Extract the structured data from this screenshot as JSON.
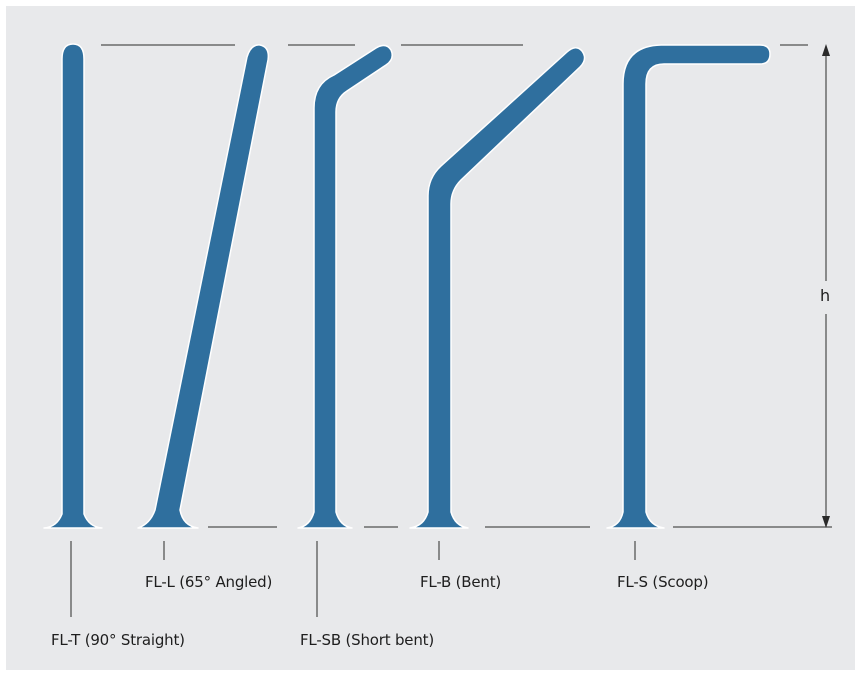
{
  "colors": {
    "background": "#e8e9eb",
    "bar_fill": "#2f6f9e",
    "bar_outline": "#ffffff",
    "guide_line": "#2a2a2a"
  },
  "dimension": {
    "label": "h"
  },
  "bars": [
    {
      "code": "FL-T",
      "label": "FL-T (90° Straight)"
    },
    {
      "code": "FL-L",
      "label": "FL-L (65° Angled)"
    },
    {
      "code": "FL-SB",
      "label": "FL-SB (Short bent)"
    },
    {
      "code": "FL-B",
      "label": "FL-B (Bent)"
    },
    {
      "code": "FL-S",
      "label": "FL-S (Scoop)"
    }
  ]
}
